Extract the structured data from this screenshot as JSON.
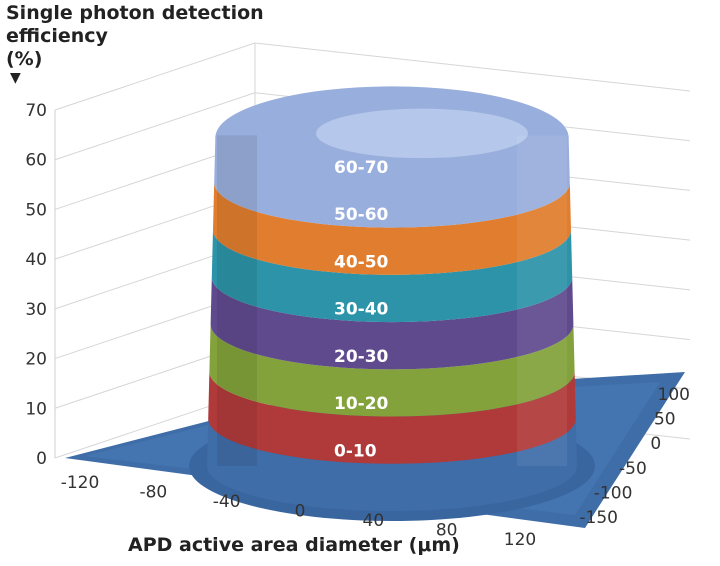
{
  "chart_data": {
    "type": "surface3d",
    "title_lines": [
      "Single photon detection",
      "efficiency",
      "(%)"
    ],
    "title_arrow": "▼",
    "xlabel": "APD active area diameter (μm)",
    "ylabel": "",
    "zlabel": "Single photon detection efficiency (%)",
    "x_ticks": [
      -120,
      -80,
      -40,
      0,
      40,
      80,
      120
    ],
    "y_ticks": [
      100,
      50,
      0,
      -50,
      -100,
      -150
    ],
    "z_ticks": [
      0,
      10,
      20,
      30,
      40,
      50,
      60,
      70
    ],
    "zlim": [
      0,
      70
    ],
    "bands": [
      {
        "label": "0-10",
        "min": 0,
        "max": 10,
        "color": "#3f6da8"
      },
      {
        "label": "10-20",
        "min": 10,
        "max": 20,
        "color": "#b03a3a"
      },
      {
        "label": "20-30",
        "min": 20,
        "max": 30,
        "color": "#83a23b"
      },
      {
        "label": "30-40",
        "min": 30,
        "max": 40,
        "color": "#604a8e"
      },
      {
        "label": "40-50",
        "min": 40,
        "max": 50,
        "color": "#2d93a8"
      },
      {
        "label": "50-60",
        "min": 50,
        "max": 60,
        "color": "#e07d2e"
      },
      {
        "label": "60-70",
        "min": 60,
        "max": 70,
        "color": "#98aedc"
      }
    ]
  }
}
